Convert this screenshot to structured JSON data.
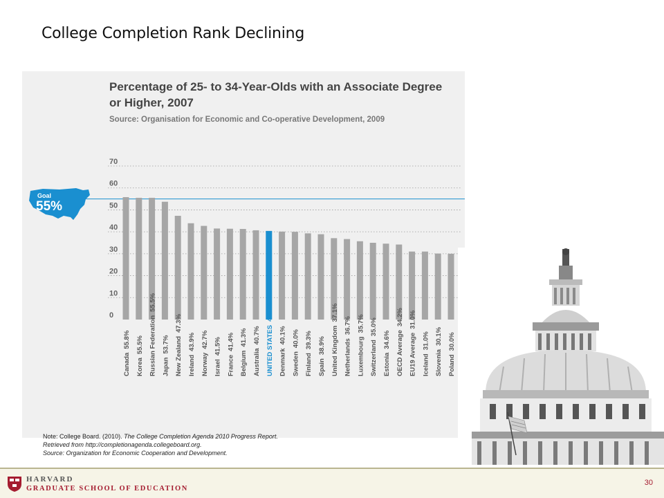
{
  "slide": {
    "title": "College Completion Rank Declining",
    "page_number": "30"
  },
  "note": {
    "line1_prefix": "Note: College Board. (2010). ",
    "line1_italic": "The College Completion Agenda 2010 Progress Report.",
    "line2": "Retrieved from http://completionagenda.collegeboard.org.",
    "line3": "Source: Organization for Economic Cooperation and Development."
  },
  "goal": {
    "label": "Goal",
    "value_text": "55%",
    "value": 55,
    "color": "#1a8fd0"
  },
  "footer": {
    "line1": "HARVARD",
    "line2": "GRADUATE SCHOOL OF EDUCATION",
    "brand_color": "#a51c30"
  },
  "chart_data": {
    "type": "bar",
    "title": "Percentage of 25- to 34-Year-Olds with an Associate Degree or Higher, 2007",
    "subtitle": "Source: Organisation for Economic and Co-operative Development, 2009",
    "ylim": [
      0,
      70
    ],
    "yticks": [
      "0",
      "10",
      "20",
      "30",
      "40",
      "50",
      "60",
      "70"
    ],
    "grid": true,
    "bar_color": "#a6a6a6",
    "highlight_color": "#1a8fd0",
    "highlight_category": "UNITED STATES",
    "reference_line": 55,
    "categories": [
      "Canada",
      "Korea",
      "Russian Federation",
      "Japan",
      "New Zealand",
      "Ireland",
      "Norway",
      "Israel",
      "France",
      "Belgium",
      "Australia",
      "UNITED STATES",
      "Denmark",
      "Sweden",
      "Finland",
      "Spain",
      "United Kingdom",
      "Netherlands",
      "Luxembourg",
      "Switzerland",
      "Estonia",
      "OECD Average",
      "EU19 Average",
      "Iceland",
      "Slovenia",
      "Poland"
    ],
    "values": [
      55.8,
      55.5,
      55.5,
      53.7,
      47.3,
      43.9,
      42.7,
      41.5,
      41.4,
      41.3,
      40.7,
      40.4,
      40.1,
      40.0,
      39.3,
      38.9,
      37.1,
      36.7,
      35.7,
      35.0,
      34.6,
      34.2,
      31.0,
      31.0,
      30.1,
      30.0
    ],
    "value_labels": [
      "55.8%",
      "55.5%",
      "55.5%",
      "53.7%",
      "47.3%",
      "43.9%",
      "42.7%",
      "41.5%",
      "41.4%",
      "41.3%",
      "40.7%",
      "40.4%",
      "40.1%",
      "40.0%",
      "39.3%",
      "38.9%",
      "37.1%",
      "36.7%",
      "35.7%",
      "35.0%",
      "34.6%",
      "34.2%",
      "31.0%",
      "31.0%",
      "30.1%",
      "30.0%"
    ]
  }
}
